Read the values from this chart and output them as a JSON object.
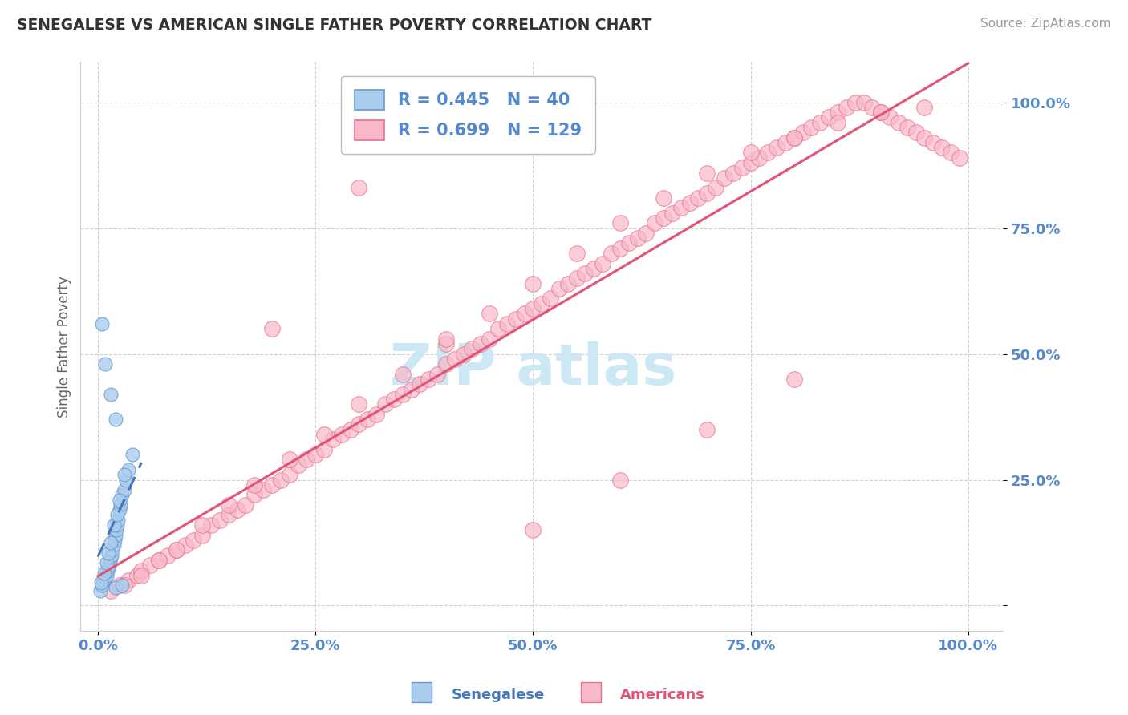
{
  "title": "SENEGALESE VS AMERICAN SINGLE FATHER POVERTY CORRELATION CHART",
  "source": "Source: ZipAtlas.com",
  "ylabel_label": "Single Father Poverty",
  "legend_label1": "Senegalese",
  "legend_label2": "Americans",
  "R1": 0.445,
  "N1": 40,
  "R2": 0.699,
  "N2": 129,
  "blue_fill": "#aaccee",
  "blue_edge": "#6699cc",
  "blue_line": "#4477bb",
  "pink_fill": "#f8b8c8",
  "pink_edge": "#e87090",
  "pink_line": "#e05575",
  "title_color": "#333333",
  "axis_tick_color": "#5588cc",
  "ylabel_color": "#666666",
  "watermark_color": "#cce8f5",
  "grid_color": "#cccccc",
  "senegalese_x": [
    0.3,
    0.5,
    0.6,
    0.8,
    1.0,
    1.1,
    1.2,
    1.3,
    1.4,
    1.5,
    1.6,
    1.7,
    1.8,
    1.9,
    2.0,
    2.0,
    2.1,
    2.2,
    2.3,
    2.5,
    2.6,
    2.8,
    3.0,
    3.2,
    3.5,
    4.0,
    0.4,
    0.7,
    1.0,
    1.2,
    1.5,
    1.8,
    2.2,
    2.5,
    3.0,
    0.5,
    0.8,
    1.5,
    2.0,
    2.8
  ],
  "senegalese_y": [
    3.0,
    4.0,
    5.0,
    5.5,
    6.0,
    7.0,
    7.5,
    8.0,
    9.0,
    9.5,
    10.0,
    11.0,
    12.0,
    13.0,
    14.0,
    3.5,
    15.0,
    16.0,
    17.0,
    19.0,
    20.0,
    22.0,
    23.0,
    25.0,
    27.0,
    30.0,
    4.5,
    6.5,
    8.5,
    10.5,
    12.5,
    16.0,
    18.0,
    21.0,
    26.0,
    56.0,
    48.0,
    42.0,
    37.0,
    4.0
  ],
  "americans_x": [
    1.5,
    2.5,
    3.5,
    4.5,
    5.0,
    6.0,
    7.0,
    8.0,
    9.0,
    10.0,
    11.0,
    12.0,
    13.0,
    14.0,
    15.0,
    16.0,
    17.0,
    18.0,
    19.0,
    20.0,
    21.0,
    22.0,
    23.0,
    24.0,
    25.0,
    26.0,
    27.0,
    28.0,
    29.0,
    30.0,
    31.0,
    32.0,
    33.0,
    34.0,
    35.0,
    36.0,
    37.0,
    38.0,
    39.0,
    40.0,
    41.0,
    42.0,
    43.0,
    44.0,
    45.0,
    46.0,
    47.0,
    48.0,
    49.0,
    50.0,
    51.0,
    52.0,
    53.0,
    54.0,
    55.0,
    56.0,
    57.0,
    58.0,
    59.0,
    60.0,
    61.0,
    62.0,
    63.0,
    64.0,
    65.0,
    66.0,
    67.0,
    68.0,
    69.0,
    70.0,
    71.0,
    72.0,
    73.0,
    74.0,
    75.0,
    76.0,
    77.0,
    78.0,
    79.0,
    80.0,
    81.0,
    82.0,
    83.0,
    84.0,
    85.0,
    86.0,
    87.0,
    88.0,
    89.0,
    90.0,
    91.0,
    92.0,
    93.0,
    94.0,
    95.0,
    96.0,
    97.0,
    98.0,
    99.0,
    3.0,
    5.0,
    7.0,
    9.0,
    12.0,
    15.0,
    18.0,
    22.0,
    26.0,
    30.0,
    35.0,
    40.0,
    45.0,
    50.0,
    55.0,
    60.0,
    65.0,
    70.0,
    75.0,
    80.0,
    85.0,
    90.0,
    95.0,
    20.0,
    30.0,
    40.0,
    50.0,
    60.0,
    70.0,
    80.0
  ],
  "americans_y": [
    3.0,
    4.0,
    5.0,
    6.0,
    7.0,
    8.0,
    9.0,
    10.0,
    11.0,
    12.0,
    13.0,
    14.0,
    16.0,
    17.0,
    18.0,
    19.0,
    20.0,
    22.0,
    23.0,
    24.0,
    25.0,
    26.0,
    28.0,
    29.0,
    30.0,
    31.0,
    33.0,
    34.0,
    35.0,
    36.0,
    37.0,
    38.0,
    40.0,
    41.0,
    42.0,
    43.0,
    44.0,
    45.0,
    46.0,
    48.0,
    49.0,
    50.0,
    51.0,
    52.0,
    53.0,
    55.0,
    56.0,
    57.0,
    58.0,
    59.0,
    60.0,
    61.0,
    63.0,
    64.0,
    65.0,
    66.0,
    67.0,
    68.0,
    70.0,
    71.0,
    72.0,
    73.0,
    74.0,
    76.0,
    77.0,
    78.0,
    79.0,
    80.0,
    81.0,
    82.0,
    83.0,
    85.0,
    86.0,
    87.0,
    88.0,
    89.0,
    90.0,
    91.0,
    92.0,
    93.0,
    94.0,
    95.0,
    96.0,
    97.0,
    98.0,
    99.0,
    100.0,
    100.0,
    99.0,
    98.0,
    97.0,
    96.0,
    95.0,
    94.0,
    93.0,
    92.0,
    91.0,
    90.0,
    89.0,
    4.0,
    6.0,
    9.0,
    11.0,
    16.0,
    20.0,
    24.0,
    29.0,
    34.0,
    40.0,
    46.0,
    52.0,
    58.0,
    64.0,
    70.0,
    76.0,
    81.0,
    86.0,
    90.0,
    93.0,
    96.0,
    98.0,
    99.0,
    55.0,
    83.0,
    53.0,
    15.0,
    25.0,
    35.0,
    45.0
  ]
}
